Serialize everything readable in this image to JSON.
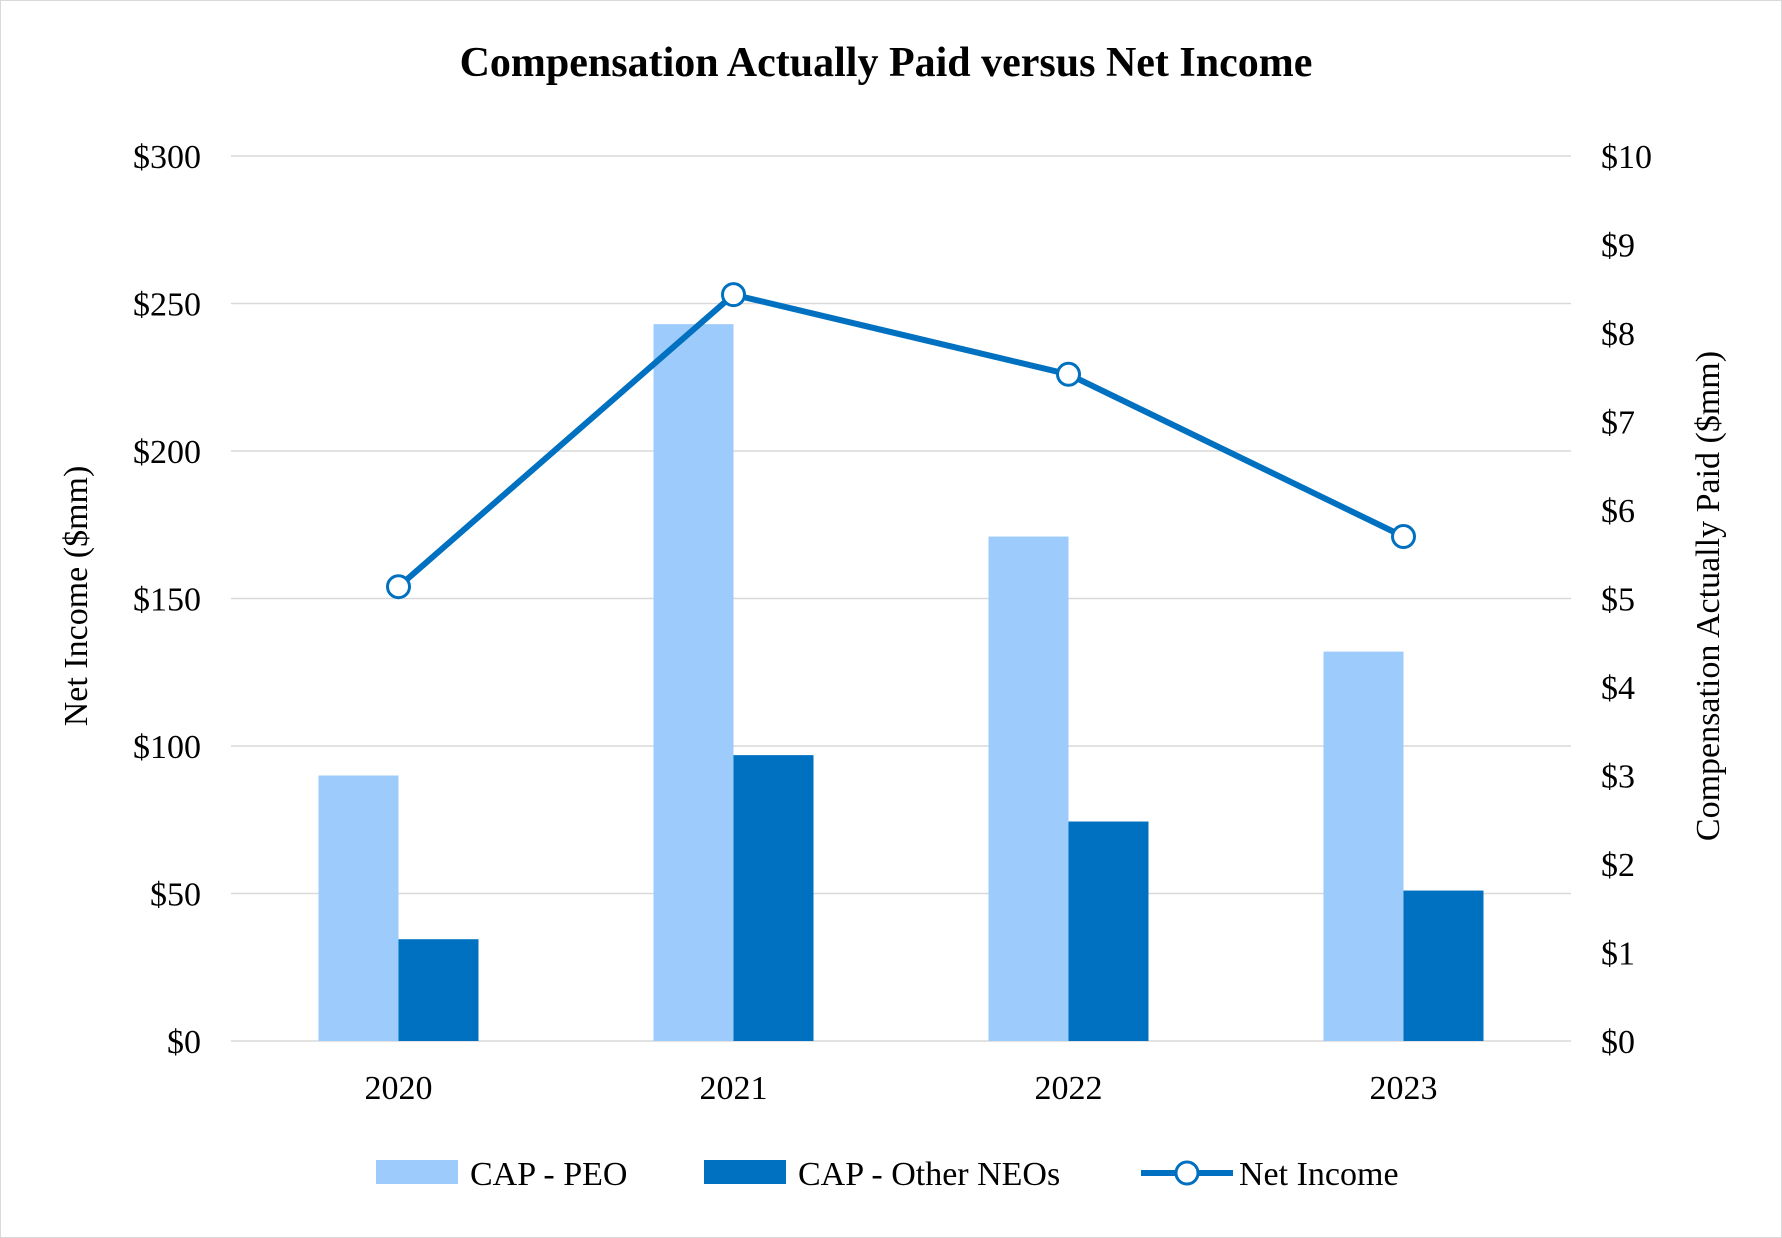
{
  "chart_data": {
    "type": "bar+line",
    "title": "Compensation Actually Paid versus Net Income",
    "categories": [
      "2020",
      "2021",
      "2022",
      "2023"
    ],
    "left_axis": {
      "label": "Net Income ($mm)",
      "min": 0,
      "max": 300,
      "step": 50,
      "tick_labels": [
        "$0",
        "$50",
        "$100",
        "$150",
        "$200",
        "$250",
        "$300"
      ]
    },
    "right_axis": {
      "label": "Compensation Actually Paid ($mm)",
      "min": 0,
      "max": 10,
      "step": 1,
      "tick_labels": [
        "$0",
        "$1",
        "$2",
        "$3",
        "$4",
        "$5",
        "$6",
        "$7",
        "$8",
        "$9",
        "$10"
      ]
    },
    "series": [
      {
        "name": "CAP - PEO",
        "type": "bar",
        "axis": "right",
        "color": "#9DCBFB",
        "values": [
          3.0,
          8.1,
          5.7,
          4.4
        ]
      },
      {
        "name": "CAP - Other NEOs",
        "type": "bar",
        "axis": "right",
        "color": "#0070C0",
        "values": [
          1.15,
          3.23,
          2.48,
          1.7
        ]
      },
      {
        "name": "Net Income",
        "type": "line",
        "axis": "left",
        "color": "#0070C0",
        "values": [
          154,
          253,
          226,
          171
        ]
      }
    ],
    "grid": true,
    "legend_position": "bottom"
  }
}
